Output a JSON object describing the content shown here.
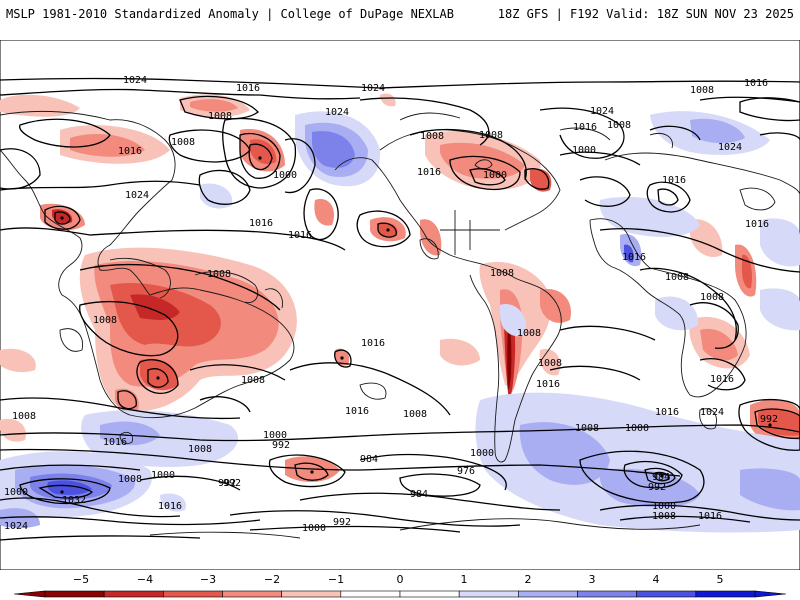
{
  "header": {
    "left_title": "MSLP 1981-2010 Standardized Anomaly | College of DuPage NEXLAB",
    "right_title": "18Z GFS | F192 Valid: 18Z SUN NOV 23 2025"
  },
  "colors": {
    "neg5": "#8b0000",
    "neg4": "#c62828",
    "neg3": "#e4574b",
    "neg2": "#f28a7e",
    "neg1": "#f9c2b8",
    "zero": "#ffffff",
    "pos1": "#d6d9f7",
    "pos2": "#a9aef2",
    "pos3": "#7c82ea",
    "pos4": "#4b52e0",
    "pos5": "#1018d8",
    "contour": "#000000",
    "coast": "#1a1a1a"
  },
  "contour_labels": [
    {
      "id": "l1",
      "text": "1024"
    },
    {
      "id": "l2",
      "text": "1016"
    },
    {
      "id": "l3",
      "text": "1008"
    },
    {
      "id": "l4",
      "text": "1024"
    },
    {
      "id": "l5",
      "text": "1016"
    },
    {
      "id": "l6",
      "text": "1008"
    },
    {
      "id": "l7",
      "text": "1024"
    },
    {
      "id": "l8",
      "text": "1008"
    },
    {
      "id": "l9",
      "text": "1000"
    },
    {
      "id": "l10",
      "text": "1016"
    },
    {
      "id": "l11",
      "text": "1016"
    },
    {
      "id": "l12",
      "text": "1024"
    },
    {
      "id": "l13",
      "text": "1008"
    },
    {
      "id": "l14",
      "text": "1016"
    },
    {
      "id": "l15",
      "text": "1008"
    },
    {
      "id": "l16",
      "text": "1000"
    },
    {
      "id": "l17",
      "text": "1024"
    },
    {
      "id": "l18",
      "text": "1016"
    },
    {
      "id": "l19",
      "text": "1016"
    },
    {
      "id": "l20",
      "text": "1008"
    },
    {
      "id": "l21",
      "text": "1000"
    },
    {
      "id": "l22",
      "text": "1024"
    },
    {
      "id": "l23",
      "text": "1016"
    },
    {
      "id": "l24",
      "text": "1008"
    },
    {
      "id": "l25",
      "text": "1008"
    },
    {
      "id": "l26",
      "text": "1016"
    },
    {
      "id": "l27",
      "text": "1008"
    },
    {
      "id": "l28",
      "text": "1008"
    },
    {
      "id": "l29",
      "text": "1008"
    },
    {
      "id": "l30",
      "text": "1008"
    },
    {
      "id": "l31",
      "text": "1008"
    },
    {
      "id": "l32",
      "text": "1016"
    },
    {
      "id": "l33",
      "text": "1016"
    },
    {
      "id": "l34",
      "text": "1008"
    },
    {
      "id": "l35",
      "text": "1016"
    },
    {
      "id": "l36",
      "text": "1000"
    },
    {
      "id": "l37",
      "text": "992"
    },
    {
      "id": "l38",
      "text": "1008"
    },
    {
      "id": "l39",
      "text": "1008"
    },
    {
      "id": "l40",
      "text": "1016"
    },
    {
      "id": "l41",
      "text": "1000"
    },
    {
      "id": "l42",
      "text": "1008"
    },
    {
      "id": "l43",
      "text": "1016"
    },
    {
      "id": "l44",
      "text": "1024"
    },
    {
      "id": "l45",
      "text": "992"
    },
    {
      "id": "l46",
      "text": "1008"
    },
    {
      "id": "l47",
      "text": "1000"
    },
    {
      "id": "l48",
      "text": "984"
    },
    {
      "id": "l49",
      "text": "976"
    },
    {
      "id": "l50",
      "text": "1000"
    },
    {
      "id": "l51",
      "text": "992"
    },
    {
      "id": "l52",
      "text": "1032"
    },
    {
      "id": "l53",
      "text": "1000"
    },
    {
      "id": "l54",
      "text": "1008"
    },
    {
      "id": "l55",
      "text": "1024"
    },
    {
      "id": "l56",
      "text": "984"
    },
    {
      "id": "l57",
      "text": "992"
    },
    {
      "id": "l58",
      "text": "1016"
    },
    {
      "id": "l59",
      "text": "984"
    },
    {
      "id": "l60",
      "text": "992"
    },
    {
      "id": "l61",
      "text": "1000"
    },
    {
      "id": "l62",
      "text": "1008"
    },
    {
      "id": "l63",
      "text": "1016"
    },
    {
      "id": "l64",
      "text": "1000"
    },
    {
      "id": "l65",
      "text": "992"
    },
    {
      "id": "l66",
      "text": "1016"
    },
    {
      "id": "l67",
      "text": "1016"
    }
  ],
  "colorbar": {
    "ticks": [
      "−5",
      "−4",
      "−3",
      "−2",
      "−1",
      "0",
      "1",
      "2",
      "3",
      "4",
      "5"
    ]
  }
}
